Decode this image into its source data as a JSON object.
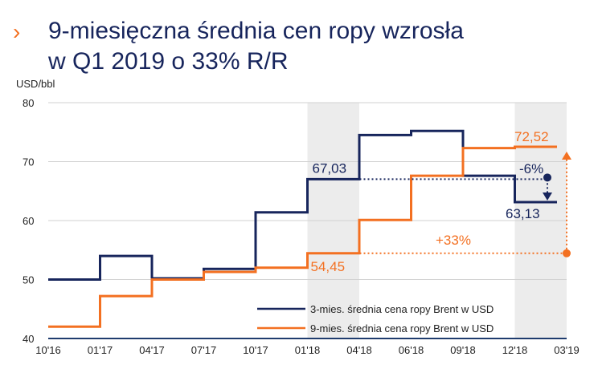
{
  "header": {
    "chevron": "›",
    "title_line1": "9-miesięczna średnia cen ropy wzrosła",
    "title_line2": "w Q1 2019 o 33% R/R"
  },
  "chart_data": {
    "type": "line",
    "ylabel": "USD/bbl",
    "ylim": [
      40,
      80
    ],
    "yticks": [
      40,
      50,
      60,
      70,
      80
    ],
    "categories": [
      "10'16",
      "01'17",
      "04'17",
      "07'17",
      "10'17",
      "01'18",
      "04'18",
      "06'18",
      "09'18",
      "12'18",
      "03'19"
    ],
    "step_line": true,
    "shaded_periods": [
      [
        "01'18",
        "04'18"
      ],
      [
        "12'18",
        "03'19"
      ]
    ],
    "series": [
      {
        "name": "3-mies. średnia cena ropy Brent w USD",
        "color": "#17255c",
        "values": [
          50.0,
          54.0,
          50.2,
          51.8,
          61.4,
          67.03,
          74.5,
          75.2,
          67.6,
          63.13,
          63.13
        ]
      },
      {
        "name": "9-mies. średnia cena ropy Brent w USD",
        "color": "#f37021",
        "values": [
          42.0,
          47.2,
          50.0,
          51.3,
          52.0,
          54.45,
          60.1,
          67.6,
          72.3,
          72.52,
          72.52
        ]
      }
    ],
    "annotations": {
      "navy_start": "67,03",
      "navy_end": "63,13",
      "navy_change": "-6%",
      "orange_start": "54,45",
      "orange_end": "72,52",
      "orange_change": "+33%"
    }
  }
}
